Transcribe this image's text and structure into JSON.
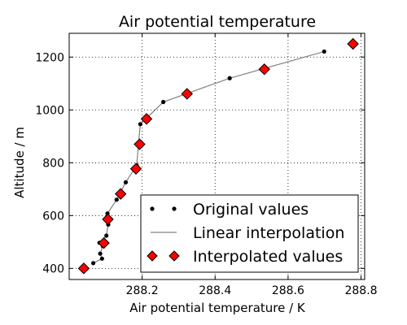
{
  "chart_data": {
    "type": "line",
    "title": "Air potential temperature",
    "xlabel": "Air potential temperature / K",
    "ylabel": "Altitude / m",
    "xlim": [
      288.0,
      288.81
    ],
    "ylim": [
      358,
      1290
    ],
    "xticks": [
      288.2,
      288.4,
      288.6,
      288.8
    ],
    "xtick_labels": [
      "288.2",
      "288.4",
      "288.6",
      "288.8"
    ],
    "yticks": [
      400,
      600,
      800,
      1000,
      1200
    ],
    "ytick_labels": [
      "400",
      "600",
      "800",
      "1000",
      "1200"
    ],
    "grid": true,
    "legend_position": "lower-right",
    "series": [
      {
        "name": "Original values",
        "style": "points",
        "color": "#000000",
        "x": [
          288.066,
          288.09,
          288.085,
          288.092,
          288.083,
          288.102,
          288.107,
          288.105,
          288.13,
          288.155,
          288.185,
          288.19,
          288.195,
          288.258,
          288.44,
          288.699
        ],
        "y": [
          420,
          437,
          456,
          485,
          497,
          524,
          566,
          608,
          660,
          726,
          790,
          872,
          946,
          1030,
          1120,
          1221
        ]
      },
      {
        "name": "Linear interpolation",
        "style": "line",
        "color": "#808080",
        "x": [
          288.066,
          288.09,
          288.085,
          288.092,
          288.083,
          288.102,
          288.107,
          288.105,
          288.13,
          288.155,
          288.185,
          288.19,
          288.195,
          288.258,
          288.44,
          288.699
        ],
        "y": [
          420,
          437,
          456,
          485,
          497,
          524,
          566,
          608,
          660,
          726,
          790,
          872,
          946,
          1030,
          1120,
          1221
        ]
      },
      {
        "name": "Interpolated values",
        "style": "diamonds",
        "color": "#ff0000",
        "x": [
          288.04,
          288.095,
          288.106,
          288.141,
          288.183,
          288.193,
          288.212,
          288.323,
          288.535,
          288.778
        ],
        "y": [
          400,
          496,
          586,
          682,
          777,
          870,
          966,
          1061,
          1154,
          1250
        ]
      }
    ]
  }
}
